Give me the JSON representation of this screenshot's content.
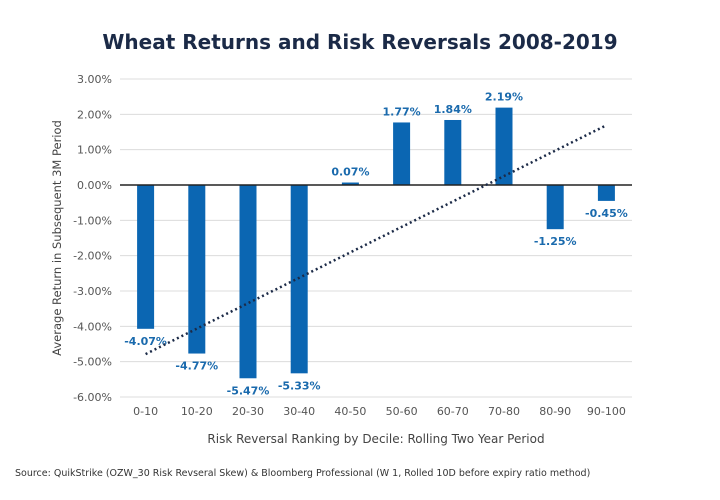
{
  "chart_data": {
    "type": "bar",
    "title": "Wheat Returns and Risk Reversals 2008-2019",
    "xlabel": "Risk Reversal Ranking by Decile: Rolling Two Year Period",
    "ylabel": "Average Return in Subsequent 3M Period",
    "categories": [
      "0-10",
      "10-20",
      "20-30",
      "30-40",
      "40-50",
      "50-60",
      "60-70",
      "70-80",
      "80-90",
      "90-100"
    ],
    "values": [
      -4.07,
      -4.77,
      -5.47,
      -5.33,
      0.07,
      1.77,
      1.84,
      2.19,
      -1.25,
      -0.45
    ],
    "data_labels": [
      "-4.07%",
      "-4.77%",
      "-5.47%",
      "-5.33%",
      "0.07%",
      "1.77%",
      "1.84%",
      "2.19%",
      "-1.25%",
      "-0.45%"
    ],
    "ylim": [
      -6,
      3
    ],
    "yticks": [
      3,
      2,
      1,
      0,
      -1,
      -2,
      -3,
      -4,
      -5,
      -6
    ],
    "ytick_labels": [
      "3.00%",
      "2.00%",
      "1.00%",
      "0.00%",
      "-1.00%",
      "-2.00%",
      "-3.00%",
      "-4.00%",
      "-5.00%",
      "-6.00%"
    ],
    "trendline": "linear (dotted)",
    "grid": true,
    "colors": {
      "bar": "#0b66b2",
      "label": "#1a6aad",
      "trendline": "#1b2a47",
      "title": "#1b2a47"
    }
  },
  "source": "Source: QuikStrike (OZW_30 Risk Revseral Skew) & Bloomberg Professional (W 1, Rolled 10D before expiry ratio method)"
}
